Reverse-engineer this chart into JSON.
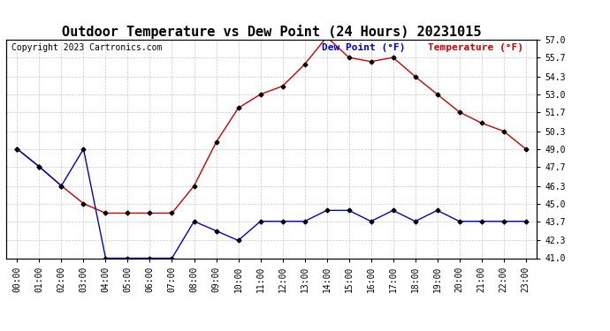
{
  "title": "Outdoor Temperature vs Dew Point (24 Hours) 20231015",
  "copyright": "Copyright 2023 Cartronics.com",
  "legend_dew": "Dew Point (°F)",
  "legend_temp": "Temperature (°F)",
  "hours": [
    "00:00",
    "01:00",
    "02:00",
    "03:00",
    "04:00",
    "05:00",
    "06:00",
    "07:00",
    "08:00",
    "09:00",
    "10:00",
    "11:00",
    "12:00",
    "13:00",
    "14:00",
    "15:00",
    "16:00",
    "17:00",
    "18:00",
    "19:00",
    "20:00",
    "21:00",
    "22:00",
    "23:00"
  ],
  "temperature": [
    49.0,
    47.7,
    46.3,
    49.0,
    41.0,
    41.0,
    41.0,
    41.0,
    43.7,
    43.0,
    42.3,
    43.7,
    43.7,
    43.7,
    44.5,
    44.5,
    43.7,
    44.5,
    43.7,
    44.5,
    43.7,
    43.7,
    43.7,
    43.7
  ],
  "dew_point": [
    49.0,
    47.7,
    46.3,
    45.0,
    44.3,
    44.3,
    44.3,
    44.3,
    46.3,
    49.5,
    52.0,
    53.0,
    53.6,
    55.2,
    57.2,
    55.7,
    55.4,
    55.7,
    54.3,
    53.0,
    51.7,
    50.9,
    50.3,
    49.0
  ],
  "temp_color": "#0000cc",
  "dew_color": "#cc0000",
  "marker": "D",
  "marker_size": 2.5,
  "line_width": 1.0,
  "ylim": [
    41.0,
    57.0
  ],
  "yticks": [
    41.0,
    42.3,
    43.7,
    45.0,
    46.3,
    47.7,
    49.0,
    50.3,
    51.7,
    53.0,
    54.3,
    55.7,
    57.0
  ],
  "background_color": "#ffffff",
  "grid_color": "#bbbbbb",
  "title_fontsize": 11,
  "copyright_fontsize": 7,
  "legend_fontsize": 8,
  "axis_fontsize": 7
}
